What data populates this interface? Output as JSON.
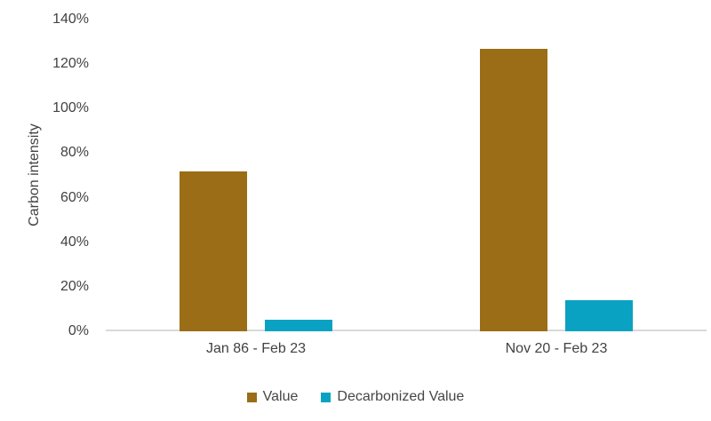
{
  "chart_data": {
    "type": "bar",
    "title": "",
    "categories": [
      "Jan 86 - Feb 23",
      "Nov 20 - Feb 23"
    ],
    "series": [
      {
        "name": "Value",
        "color": "#9A6D16",
        "values": [
          72,
          127
        ]
      },
      {
        "name": "Decarbonized Value",
        "color": "#0AA2C2",
        "values": [
          5,
          14
        ]
      }
    ],
    "value_unit": "percent",
    "xlabel": "",
    "ylabel": "Carbon intensity",
    "ylim": [
      0,
      140
    ],
    "ytick_step": 20,
    "ytick_labels": [
      "0%",
      "20%",
      "40%",
      "60%",
      "80%",
      "100%",
      "120%",
      "140%"
    ],
    "grid": false,
    "legend_position": "bottom",
    "axis_line_color": "#D9D9D9",
    "text_color": "#424242",
    "background_color": "#FFFFFF"
  }
}
